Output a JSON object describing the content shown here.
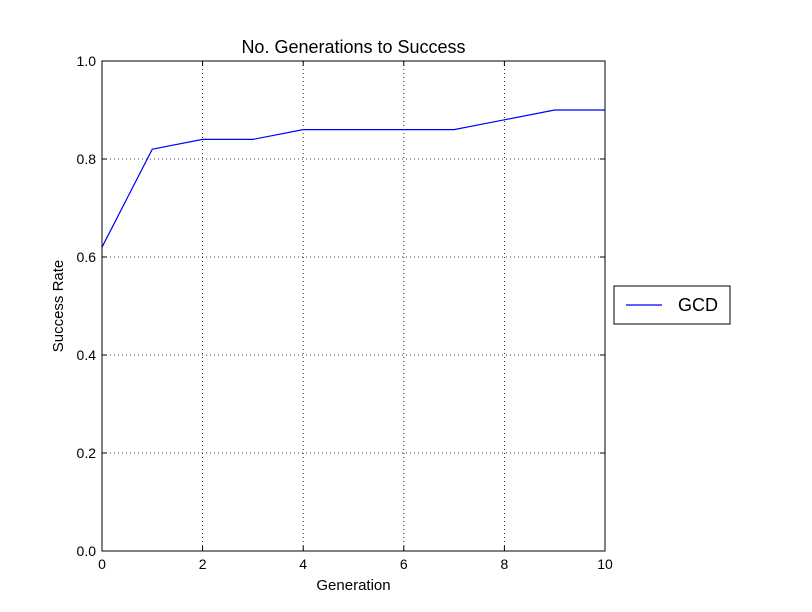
{
  "chart_data": {
    "type": "line",
    "title": "No. Generations to Success",
    "xlabel": "Generation",
    "ylabel": "Success Rate",
    "xlim": [
      0,
      10
    ],
    "ylim": [
      0.0,
      1.0
    ],
    "xticks": [
      "0",
      "2",
      "4",
      "6",
      "8",
      "10"
    ],
    "yticks": [
      "0.0",
      "0.2",
      "0.4",
      "0.6",
      "0.8",
      "1.0"
    ],
    "grid": true,
    "legend_position": "outside-right",
    "series": [
      {
        "name": "GCD",
        "color": "#0000ff",
        "x": [
          0,
          1,
          2,
          3,
          4,
          5,
          6,
          7,
          8,
          9,
          10
        ],
        "y": [
          0.62,
          0.82,
          0.84,
          0.84,
          0.86,
          0.86,
          0.86,
          0.86,
          0.88,
          0.9,
          0.9
        ]
      }
    ]
  }
}
